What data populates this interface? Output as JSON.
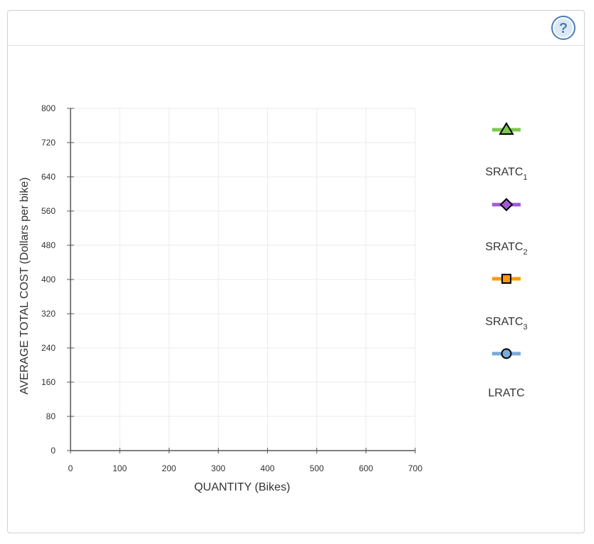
{
  "help": {
    "icon": "help-icon",
    "label": "?"
  },
  "chart_data": {
    "type": "line",
    "xlabel": "QUANTITY (Bikes)",
    "ylabel": "AVERAGE TOTAL COST (Dollars per bike)",
    "xlim": [
      0,
      700
    ],
    "ylim": [
      0,
      800
    ],
    "xticks": [
      0,
      100,
      200,
      300,
      400,
      500,
      600,
      700
    ],
    "yticks": [
      0,
      80,
      160,
      240,
      320,
      400,
      480,
      560,
      640,
      720,
      800
    ],
    "grid": true,
    "series": []
  },
  "legend": {
    "placement": "right",
    "items": [
      {
        "base": "SRATC",
        "sub": "1",
        "color": "#7ec850",
        "marker": "triangle"
      },
      {
        "base": "SRATC",
        "sub": "2",
        "color": "#a259d9",
        "marker": "diamond"
      },
      {
        "base": "SRATC",
        "sub": "3",
        "color": "#ff9a00",
        "marker": "square"
      },
      {
        "base": "LRATC",
        "sub": "",
        "color": "#7aaad8",
        "marker": "circle"
      }
    ]
  }
}
